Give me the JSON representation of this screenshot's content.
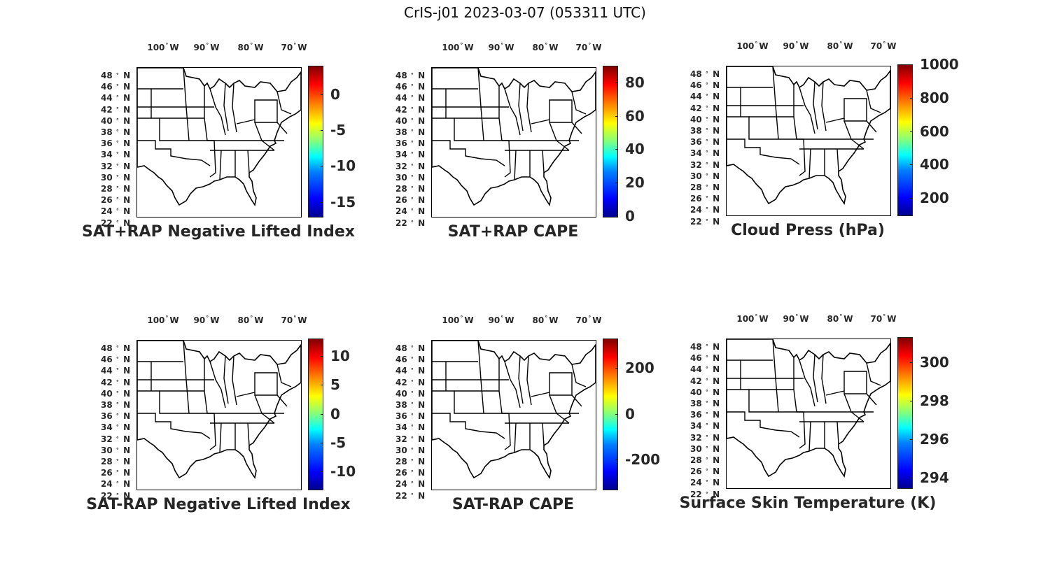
{
  "figure": {
    "title": "CrIS-j01 2023-03-07 (053311 UTC)"
  },
  "axes": {
    "lon_ticks": [
      {
        "value": "100",
        "hemi": "W"
      },
      {
        "value": "90",
        "hemi": "W"
      },
      {
        "value": "80",
        "hemi": "W"
      },
      {
        "value": "70",
        "hemi": "W"
      }
    ],
    "lat_ticks": [
      {
        "value": "48",
        "hemi": "N"
      },
      {
        "value": "46",
        "hemi": "N"
      },
      {
        "value": "44",
        "hemi": "N"
      },
      {
        "value": "42",
        "hemi": "N"
      },
      {
        "value": "40",
        "hemi": "N"
      },
      {
        "value": "38",
        "hemi": "N"
      },
      {
        "value": "36",
        "hemi": "N"
      },
      {
        "value": "34",
        "hemi": "N"
      },
      {
        "value": "32",
        "hemi": "N"
      },
      {
        "value": "30",
        "hemi": "N"
      },
      {
        "value": "28",
        "hemi": "N"
      },
      {
        "value": "26",
        "hemi": "N"
      },
      {
        "value": "24",
        "hemi": "N"
      },
      {
        "value": "22",
        "hemi": "N"
      }
    ],
    "degree_symbol": "°"
  },
  "colormap": "jet",
  "panels": [
    {
      "title": "SAT+RAP Negative Lifted Index",
      "colorbar": {
        "min": -17,
        "max": 4,
        "ticks": [
          {
            "value": 0,
            "label": "0"
          },
          {
            "value": -5,
            "label": "-5"
          },
          {
            "value": -10,
            "label": "-10"
          },
          {
            "value": -15,
            "label": "-15"
          }
        ]
      }
    },
    {
      "title": "SAT+RAP CAPE",
      "colorbar": {
        "min": 0,
        "max": 90,
        "ticks": [
          {
            "value": 80,
            "label": "80"
          },
          {
            "value": 60,
            "label": "60"
          },
          {
            "value": 40,
            "label": "40"
          },
          {
            "value": 20,
            "label": "20"
          },
          {
            "value": 0,
            "label": "0"
          }
        ]
      }
    },
    {
      "title": "Cloud Press (hPa)",
      "colorbar": {
        "min": 100,
        "max": 1000,
        "ticks": [
          {
            "value": 1000,
            "label": "1000"
          },
          {
            "value": 800,
            "label": "800"
          },
          {
            "value": 600,
            "label": "600"
          },
          {
            "value": 400,
            "label": "400"
          },
          {
            "value": 200,
            "label": "200"
          }
        ]
      }
    },
    {
      "title": "SAT-RAP Negative Lifted Index",
      "colorbar": {
        "min": -13,
        "max": 13,
        "ticks": [
          {
            "value": 10,
            "label": "10"
          },
          {
            "value": 5,
            "label": "5"
          },
          {
            "value": 0,
            "label": "0"
          },
          {
            "value": -5,
            "label": "-5"
          },
          {
            "value": -10,
            "label": "-10"
          }
        ]
      }
    },
    {
      "title": "SAT-RAP CAPE",
      "colorbar": {
        "min": -330,
        "max": 330,
        "ticks": [
          {
            "value": 200,
            "label": "200"
          },
          {
            "value": 0,
            "label": "0"
          },
          {
            "value": -200,
            "label": "-200"
          }
        ]
      }
    },
    {
      "title": "Surface Skin Temperature (K)",
      "colorbar": {
        "min": 293.5,
        "max": 301.3,
        "ticks": [
          {
            "value": 300,
            "label": "300"
          },
          {
            "value": 298,
            "label": "298"
          },
          {
            "value": 296,
            "label": "296"
          },
          {
            "value": 294,
            "label": "294"
          }
        ]
      }
    }
  ]
}
